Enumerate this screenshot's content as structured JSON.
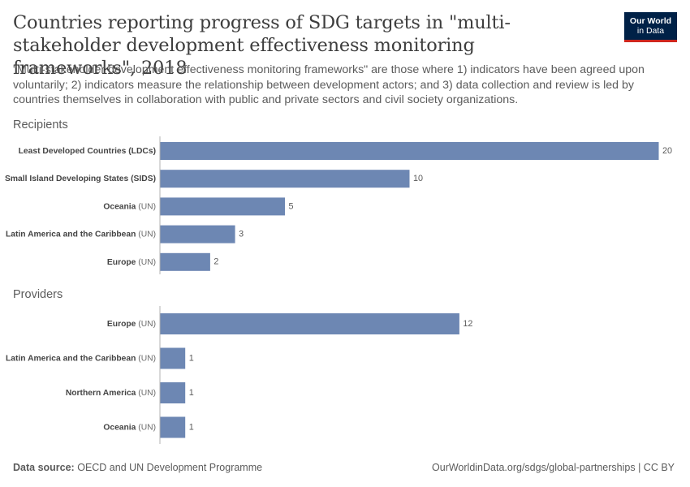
{
  "header": {
    "title": "Countries reporting progress of SDG targets in \"multi-stakeholder development effectiveness monitoring frameworks\", 2018",
    "subtitle": "\"Multi-stakeholder development effectiveness monitoring frameworks\" are those where 1) indicators have been agreed upon voluntarily; 2) indicators measure the relationship between development actors; and 3) data collection and review is led by countries themselves in collaboration with public and private sectors and civil society organizations.",
    "logo_line1": "Our World",
    "logo_line2": "in Data"
  },
  "footer": {
    "source_label": "Data source:",
    "source_text": "OECD and UN Development Programme",
    "url": "OurWorldinData.org/sdgs/global-partnerships | CC BY"
  },
  "colors": {
    "bar": "#6d87b3",
    "axis": "#b3b3b3",
    "label": "#444444",
    "suffix": "#6b6b6b",
    "group_title": "#5b5b5b"
  },
  "chart_data": [
    {
      "type": "bar",
      "orientation": "horizontal",
      "title": "Recipients",
      "categories": [
        {
          "name": "Least Developed Countries (LDCs)",
          "suffix": ""
        },
        {
          "name": "Small Island Developing States (SIDS)",
          "suffix": ""
        },
        {
          "name": "Oceania",
          "suffix": "(UN)"
        },
        {
          "name": "Latin America and the Caribbean",
          "suffix": "(UN)"
        },
        {
          "name": "Europe",
          "suffix": "(UN)"
        }
      ],
      "values": [
        20,
        10,
        5,
        3,
        2
      ],
      "xlim": [
        0,
        20
      ]
    },
    {
      "type": "bar",
      "orientation": "horizontal",
      "title": "Providers",
      "categories": [
        {
          "name": "Europe",
          "suffix": "(UN)"
        },
        {
          "name": "Latin America and the Caribbean",
          "suffix": "(UN)"
        },
        {
          "name": "Northern America",
          "suffix": "(UN)"
        },
        {
          "name": "Oceania",
          "suffix": "(UN)"
        }
      ],
      "values": [
        12,
        1,
        1,
        1
      ],
      "xlim": [
        0,
        20
      ]
    }
  ]
}
